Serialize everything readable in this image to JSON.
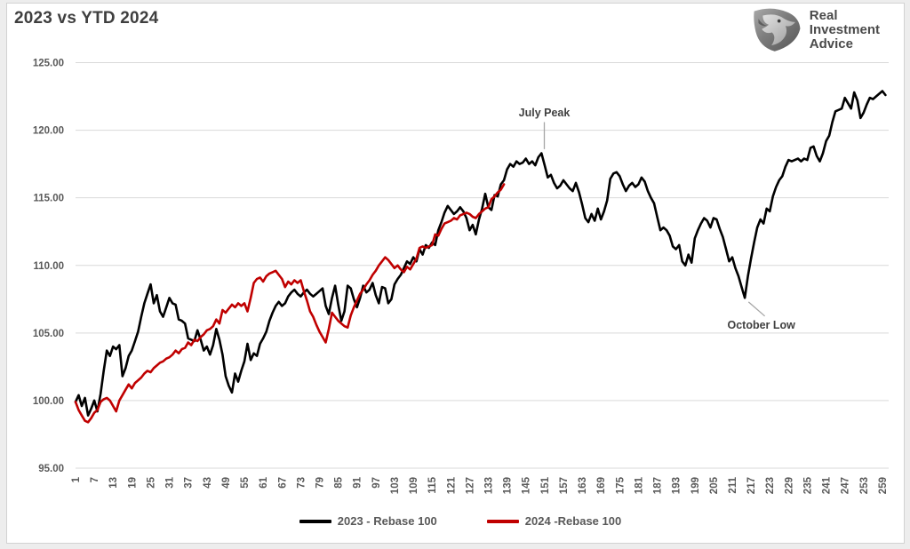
{
  "title": "2023 vs YTD 2024",
  "logo": {
    "lines": [
      "Real",
      "Investment",
      "Advice"
    ],
    "icon": "eagle-shield"
  },
  "colors": {
    "series_2023": "#000000",
    "series_2024": "#C00000",
    "gridline": "#d9d9d9",
    "axis_text": "#595959",
    "annotation_text": "#404040",
    "leader_line": "#a6a6a6"
  },
  "chart_data": {
    "type": "line",
    "title": "2023 vs YTD 2024",
    "xlabel": "",
    "ylabel": "",
    "x_ticks": {
      "start": 1,
      "step": 6,
      "end": 259,
      "rotation": -90
    },
    "y_axis": {
      "min": 95,
      "max": 125,
      "tick_step": 5,
      "tick_format": "2dp"
    },
    "grid": true,
    "legend_position": "bottom",
    "series": [
      {
        "name": "2023 - Rebase 100",
        "color": "#000000",
        "start_day": 1,
        "values": [
          99.9,
          100.4,
          99.6,
          100.2,
          98.9,
          99.4,
          100.0,
          99.2,
          100.5,
          102.2,
          103.7,
          103.3,
          104.0,
          103.8,
          104.1,
          101.8,
          102.4,
          103.3,
          103.7,
          104.4,
          105.1,
          106.2,
          107.2,
          107.9,
          108.6,
          107.2,
          107.8,
          106.6,
          106.2,
          106.9,
          107.6,
          107.2,
          107.1,
          106.0,
          105.9,
          105.7,
          104.6,
          104.5,
          104.4,
          105.2,
          104.5,
          103.7,
          104.0,
          103.4,
          104.1,
          105.3,
          104.5,
          103.4,
          101.8,
          101.1,
          100.6,
          102.0,
          101.4,
          102.2,
          102.9,
          104.2,
          103.0,
          103.5,
          103.3,
          104.2,
          104.6,
          105.1,
          105.9,
          106.5,
          107.0,
          107.3,
          107.0,
          107.2,
          107.7,
          108.0,
          108.2,
          107.9,
          107.7,
          108.0,
          108.2,
          107.9,
          107.7,
          107.9,
          108.1,
          108.3,
          107.0,
          106.4,
          107.6,
          108.5,
          107.1,
          105.9,
          106.6,
          108.5,
          108.3,
          107.5,
          106.9,
          107.6,
          108.5,
          108.0,
          108.2,
          108.7,
          107.8,
          107.2,
          108.4,
          108.3,
          107.2,
          107.5,
          108.6,
          109.0,
          109.3,
          109.8,
          110.3,
          110.1,
          110.6,
          110.3,
          111.2,
          110.8,
          111.5,
          111.3,
          111.7,
          111.5,
          112.6,
          113.2,
          113.9,
          114.4,
          114.1,
          113.8,
          114.0,
          114.3,
          114.0,
          113.5,
          112.6,
          113.0,
          112.3,
          113.4,
          114.2,
          115.3,
          114.3,
          114.1,
          115.2,
          115.1,
          116.0,
          116.3,
          117.1,
          117.5,
          117.3,
          117.7,
          117.5,
          117.6,
          117.9,
          117.5,
          117.7,
          117.4,
          118.0,
          118.3,
          117.4,
          116.5,
          116.7,
          116.1,
          115.7,
          115.9,
          116.3,
          116.0,
          115.7,
          115.5,
          116.1,
          115.4,
          114.5,
          113.5,
          113.2,
          113.8,
          113.3,
          114.2,
          113.4,
          114.0,
          114.8,
          116.4,
          116.8,
          116.9,
          116.6,
          116.0,
          115.5,
          115.9,
          116.1,
          115.8,
          116.0,
          116.5,
          116.2,
          115.5,
          115.0,
          114.6,
          113.6,
          112.6,
          112.8,
          112.6,
          112.2,
          111.4,
          111.2,
          111.5,
          110.3,
          110.0,
          110.8,
          110.2,
          112.0,
          112.6,
          113.1,
          113.5,
          113.3,
          112.8,
          113.5,
          113.4,
          112.7,
          112.1,
          111.2,
          110.3,
          110.6,
          109.8,
          109.2,
          108.4,
          107.6,
          109.2,
          110.5,
          111.7,
          112.8,
          113.4,
          113.1,
          114.2,
          114.0,
          115.1,
          115.8,
          116.3,
          116.6,
          117.3,
          117.8,
          117.7,
          117.8,
          117.9,
          117.7,
          117.9,
          117.8,
          118.7,
          118.8,
          118.1,
          117.7,
          118.3,
          119.2,
          119.6,
          120.6,
          121.4,
          121.5,
          121.6,
          122.4,
          122.0,
          121.6,
          122.8,
          122.2,
          120.9,
          121.3,
          121.9,
          122.4,
          122.3,
          122.5,
          122.7,
          122.9,
          122.6
        ]
      },
      {
        "name": "2024 -Rebase 100",
        "color": "#C00000",
        "start_day": 1,
        "values": [
          99.9,
          99.3,
          98.9,
          98.5,
          98.4,
          98.7,
          99.1,
          99.3,
          99.9,
          100.1,
          100.2,
          100.0,
          99.6,
          99.2,
          100.0,
          100.4,
          100.8,
          101.2,
          100.9,
          101.3,
          101.5,
          101.7,
          102.0,
          102.2,
          102.1,
          102.4,
          102.6,
          102.8,
          102.9,
          103.1,
          103.2,
          103.4,
          103.7,
          103.5,
          103.8,
          103.9,
          104.3,
          104.1,
          104.5,
          104.4,
          104.7,
          104.9,
          105.2,
          105.3,
          105.5,
          106.0,
          105.7,
          106.7,
          106.5,
          106.8,
          107.1,
          106.9,
          107.2,
          107.0,
          107.2,
          106.6,
          107.6,
          108.7,
          109.0,
          109.1,
          108.8,
          109.2,
          109.4,
          109.5,
          109.6,
          109.3,
          109.0,
          108.4,
          108.8,
          108.6,
          108.9,
          108.7,
          108.9,
          108.1,
          107.4,
          106.6,
          106.2,
          105.6,
          105.1,
          104.7,
          104.3,
          105.3,
          106.5,
          106.2,
          105.9,
          105.7,
          105.5,
          105.4,
          106.3,
          106.9,
          107.4,
          107.9,
          108.2,
          108.6,
          108.9,
          109.3,
          109.6,
          110.0,
          110.3,
          110.6,
          110.4,
          110.1,
          109.8,
          110.0,
          109.7,
          109.5,
          109.9,
          109.7,
          110.1,
          110.5,
          111.3,
          111.4,
          111.3,
          111.4,
          111.5,
          112.3,
          112.2,
          112.7,
          113.1,
          113.2,
          113.3,
          113.5,
          113.4,
          113.7,
          113.8,
          113.9,
          113.8,
          113.6,
          113.5,
          113.8,
          114.0,
          114.2,
          114.3,
          114.9,
          115.1,
          115.4,
          115.6,
          116.0
        ]
      }
    ],
    "annotations": [
      {
        "text": "July Peak",
        "label_day": 150.9,
        "label_value": 121.3,
        "pointer_from": [
          150.9,
          120.6
        ],
        "pointer_to": [
          150.9,
          118.6
        ]
      },
      {
        "text": "October Low",
        "label_day": 220.3,
        "label_value": 105.6,
        "pointer_from": [
          216.2,
          107.3
        ],
        "pointer_to": [
          221.4,
          106.25
        ]
      }
    ]
  }
}
